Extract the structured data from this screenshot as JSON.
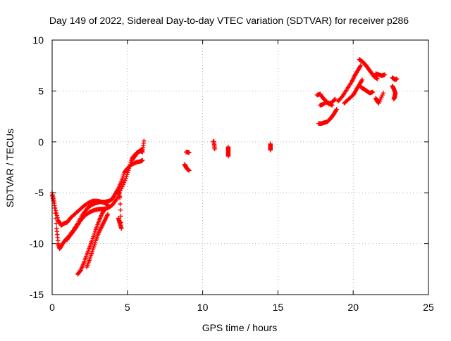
{
  "chart_data": {
    "type": "scatter",
    "title": "Day 149 of 2022, Sidereal Day-to-day VTEC variation (SDTVAR) for receiver p286",
    "xlabel": "GPS time / hours",
    "ylabel": "SDTVAR / TECUs",
    "xlim": [
      0,
      25
    ],
    "ylim": [
      -15,
      10
    ],
    "xticks": [
      0,
      5,
      10,
      15,
      20,
      25
    ],
    "yticks": [
      -15,
      -10,
      -5,
      0,
      5,
      10
    ],
    "grid": true,
    "marker": "+",
    "series": [
      {
        "name": "SDTVAR",
        "color": "#ff0000",
        "tracks": [
          {
            "x": [
              0.0,
              0.15,
              0.3,
              0.4,
              0.5,
              0.7,
              0.9,
              1.1,
              1.4,
              1.7,
              2.0,
              2.3,
              2.6,
              2.9,
              3.2,
              3.5,
              3.8,
              4.0,
              4.2,
              4.4,
              4.6,
              4.8,
              5.0,
              5.3,
              5.6,
              5.9,
              6.0
            ],
            "y": [
              -5.0,
              -6.0,
              -8.5,
              -10.0,
              -10.5,
              -10.0,
              -9.6,
              -9.3,
              -8.7,
              -8.0,
              -7.2,
              -6.6,
              -6.2,
              -6.0,
              -5.9,
              -5.9,
              -5.8,
              -5.6,
              -5.1,
              -4.6,
              -3.9,
              -3.0,
              -2.6,
              -2.2,
              -2.0,
              -1.9,
              -1.8
            ]
          },
          {
            "x": [
              0.0,
              0.2,
              0.4,
              0.6,
              0.8,
              1.0,
              1.2,
              1.5,
              1.8,
              2.1,
              2.4,
              2.7,
              3.0,
              3.3,
              3.5,
              3.7
            ],
            "y": [
              -5.3,
              -6.5,
              -7.7,
              -8.2,
              -8.0,
              -7.9,
              -7.5,
              -7.1,
              -6.7,
              -6.3,
              -6.0,
              -5.8,
              -5.8,
              -5.9,
              -6.0,
              -6.2
            ]
          },
          {
            "x": [
              1.0,
              1.3,
              1.6,
              1.9,
              2.2,
              2.5,
              2.8,
              3.1,
              3.4,
              3.7,
              4.0,
              4.3,
              4.6,
              4.9,
              5.1,
              5.3,
              5.6,
              5.9,
              6.0
            ],
            "y": [
              -9.6,
              -9.0,
              -8.4,
              -7.7,
              -7.2,
              -6.9,
              -6.7,
              -6.6,
              -6.6,
              -6.5,
              -6.2,
              -5.6,
              -4.6,
              -3.6,
              -2.6,
              -1.6,
              -1.1,
              -0.8,
              -0.8
            ]
          },
          {
            "x": [
              1.7,
              1.9,
              2.1,
              2.3,
              2.5,
              2.7,
              2.9,
              3.1,
              3.3,
              3.5
            ],
            "y": [
              -13.0,
              -12.6,
              -11.9,
              -11.1,
              -10.3,
              -9.5,
              -8.6,
              -7.8,
              -7.1,
              -6.6
            ]
          },
          {
            "x": [
              2.3,
              2.5,
              2.7,
              2.9,
              3.1,
              3.3,
              3.5,
              3.7
            ],
            "y": [
              -12.3,
              -11.5,
              -10.6,
              -9.7,
              -8.9,
              -8.3,
              -7.7,
              -7.1
            ]
          },
          {
            "x": [
              4.4,
              4.5,
              4.6,
              4.5,
              4.4
            ],
            "y": [
              -7.5,
              -8.0,
              -8.5,
              -5.5,
              -4.8
            ]
          },
          {
            "x": [
              5.3,
              5.5,
              5.7,
              5.9,
              6.0,
              6.1
            ],
            "y": [
              -1.8,
              -1.4,
              -1.0,
              -0.9,
              -1.0,
              0.1
            ]
          },
          {
            "x": [
              8.8,
              8.9,
              9.0,
              9.1
            ],
            "y": [
              -2.2,
              -2.5,
              -2.7,
              -2.8
            ]
          },
          {
            "x": [
              8.9,
              9.0,
              9.1
            ],
            "y": [
              -1.0,
              -1.0,
              -1.05
            ]
          },
          {
            "x": [
              10.7,
              10.75,
              10.8
            ],
            "y": [
              0.05,
              0.0,
              -0.7
            ]
          },
          {
            "x": [
              11.7,
              11.7,
              11.7,
              11.7
            ],
            "y": [
              -0.5,
              -0.8,
              -1.1,
              -1.4
            ]
          },
          {
            "x": [
              14.5,
              14.5,
              14.5,
              14.5,
              14.5,
              14.5
            ],
            "y": [
              -0.2,
              -0.4,
              -0.6,
              -0.8,
              -0.3,
              -0.7
            ]
          },
          {
            "x": [
              17.6,
              17.8,
              18.0,
              18.2,
              18.4,
              18.6,
              18.8
            ],
            "y": [
              4.6,
              4.7,
              4.3,
              4.0,
              3.7,
              3.9,
              4.2
            ]
          },
          {
            "x": [
              17.7,
              17.9,
              18.1,
              18.3,
              18.5,
              18.7,
              18.9
            ],
            "y": [
              1.8,
              1.8,
              1.9,
              2.0,
              2.3,
              2.7,
              3.2
            ]
          },
          {
            "x": [
              17.8,
              18.0,
              18.2,
              18.4,
              18.6
            ],
            "y": [
              3.6,
              3.7,
              3.9,
              3.8,
              3.6
            ]
          },
          {
            "x": [
              19.0,
              19.3,
              19.6,
              19.9,
              20.1,
              20.3,
              20.5
            ],
            "y": [
              4.0,
              4.5,
              5.2,
              5.9,
              6.5,
              7.0,
              7.5
            ]
          },
          {
            "x": [
              19.4,
              19.7,
              20.0,
              20.2,
              20.4,
              20.6
            ],
            "y": [
              3.8,
              4.2,
              4.6,
              5.1,
              5.6,
              6.1
            ]
          },
          {
            "x": [
              20.4,
              20.6,
              20.8,
              21.0,
              21.2,
              21.4,
              21.6
            ],
            "y": [
              8.1,
              7.9,
              7.6,
              7.2,
              6.8,
              6.4,
              6.2
            ]
          },
          {
            "x": [
              20.5,
              20.7,
              20.9,
              21.1,
              21.3
            ],
            "y": [
              5.4,
              5.2,
              5.0,
              4.8,
              4.9
            ]
          },
          {
            "x": [
              21.5,
              21.7,
              21.9,
              22.1
            ],
            "y": [
              6.7,
              6.6,
              6.5,
              6.6
            ]
          },
          {
            "x": [
              21.5,
              21.6,
              21.7,
              22.0
            ],
            "y": [
              4.3,
              4.0,
              3.8,
              4.8
            ]
          },
          {
            "x": [
              22.6,
              22.7,
              22.8,
              22.9
            ],
            "y": [
              6.3,
              6.2,
              6.1,
              6.2
            ]
          },
          {
            "x": [
              22.6,
              22.7,
              22.8,
              22.75,
              22.7
            ],
            "y": [
              5.5,
              5.2,
              4.8,
              4.4,
              4.2
            ]
          }
        ]
      }
    ]
  }
}
